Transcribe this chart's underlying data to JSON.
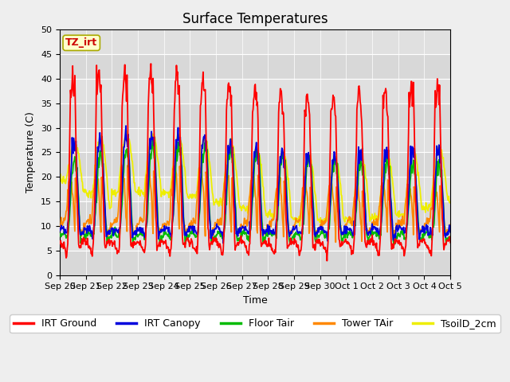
{
  "title": "Surface Temperatures",
  "xlabel": "Time",
  "ylabel": "Temperature (C)",
  "ylim": [
    0,
    50
  ],
  "n_days": 15,
  "xtick_labels": [
    "Sep 20",
    "Sep 21",
    "Sep 22",
    "Sep 23",
    "Sep 24",
    "Sep 25",
    "Sep 26",
    "Sep 27",
    "Sep 28",
    "Sep 29",
    "Sep 30",
    "Oct 1",
    "Oct 2",
    "Oct 3",
    "Oct 4",
    "Oct 5"
  ],
  "series_colors": {
    "IRT Ground": "#ff0000",
    "IRT Canopy": "#0000dd",
    "Floor Tair": "#00bb00",
    "Tower TAir": "#ff8800",
    "TsoilD_2cm": "#eeee00"
  },
  "legend_labels": [
    "IRT Ground",
    "IRT Canopy",
    "Floor Tair",
    "Tower TAir",
    "TsoilD_2cm"
  ],
  "annotation_text": "TZ_irt",
  "annotation_color": "#cc0000",
  "annotation_bg": "#ffffcc",
  "annotation_edge": "#aaaa00",
  "fig_bg_color": "#eeeeee",
  "plot_bg_color": "#e0e0e0",
  "grid_color": "#ffffff",
  "title_fontsize": 12,
  "label_fontsize": 9,
  "tick_fontsize": 8,
  "legend_fontsize": 9,
  "yticks": [
    0,
    5,
    10,
    15,
    20,
    25,
    30,
    35,
    40,
    45,
    50
  ]
}
